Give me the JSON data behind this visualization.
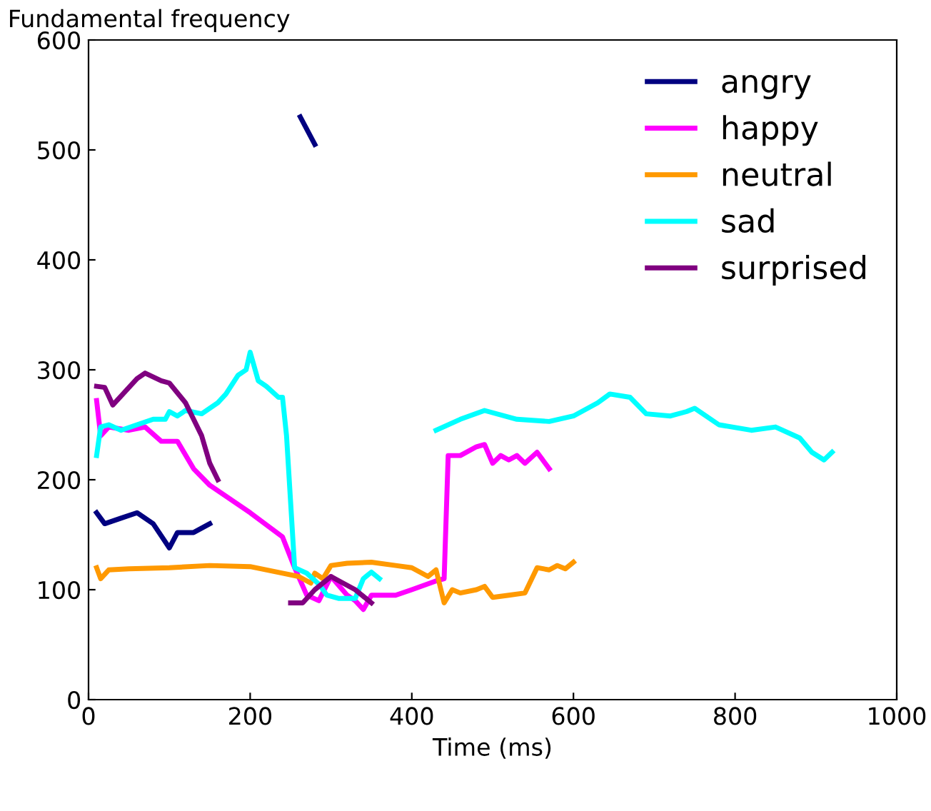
{
  "chart_data": {
    "type": "line",
    "xlabel": "Time (ms)",
    "ylabel": "Fundamental frequency",
    "xlim": [
      0,
      1000
    ],
    "xticks": [
      0,
      200,
      400,
      600,
      800,
      1000
    ],
    "ylim": [
      0,
      600
    ],
    "yticks": [
      0,
      100,
      200,
      300,
      400,
      500,
      600
    ],
    "grid": false,
    "legend": "top right",
    "marker": "none",
    "line_style": "solid",
    "series": [
      {
        "name": "angry",
        "color": "#000080",
        "x": [
          10,
          20,
          40,
          60,
          80,
          100,
          110,
          130,
          150,
          200,
          262,
          280
        ],
        "values": [
          170,
          160,
          165,
          170,
          160,
          138,
          152,
          152,
          160,
          null,
          530,
          505
        ]
      },
      {
        "name": "happy",
        "color": "#ff00ff",
        "x": [
          10,
          15,
          25,
          50,
          70,
          90,
          110,
          130,
          150,
          200,
          240,
          255,
          270,
          285,
          300,
          320,
          330,
          340,
          350,
          380,
          400,
          430,
          440,
          445,
          460,
          480,
          490,
          500,
          510,
          520,
          530,
          540,
          555,
          570
        ],
        "values": [
          272,
          240,
          248,
          245,
          248,
          235,
          235,
          210,
          195,
          170,
          148,
          120,
          95,
          90,
          112,
          95,
          90,
          82,
          95,
          95,
          100,
          108,
          110,
          222,
          222,
          230,
          232,
          215,
          222,
          218,
          222,
          215,
          225,
          210
        ]
      },
      {
        "name": "neutral",
        "color": "#ff9900",
        "x": [
          10,
          15,
          25,
          50,
          100,
          150,
          200,
          240,
          260,
          275,
          280,
          290,
          300,
          320,
          350,
          380,
          400,
          420,
          430,
          440,
          450,
          460,
          480,
          490,
          500,
          520,
          540,
          555,
          570,
          580,
          590,
          600
        ],
        "values": [
          120,
          110,
          118,
          119,
          120,
          122,
          121,
          115,
          112,
          106,
          115,
          110,
          122,
          124,
          125,
          122,
          120,
          112,
          118,
          88,
          100,
          97,
          100,
          103,
          93,
          95,
          97,
          120,
          118,
          122,
          119,
          125
        ]
      },
      {
        "name": "sad",
        "color": "#00ffff",
        "x": [
          10,
          15,
          25,
          40,
          60,
          80,
          95,
          100,
          110,
          120,
          140,
          160,
          170,
          185,
          195,
          200,
          210,
          220,
          235,
          240,
          245,
          250,
          255,
          270,
          285,
          295,
          310,
          330,
          340,
          350,
          360,
          400,
          430,
          460,
          490,
          530,
          570,
          600,
          630,
          645,
          670,
          690,
          720,
          740,
          750,
          780,
          820,
          850,
          880,
          895,
          910,
          920
        ],
        "values": [
          222,
          248,
          250,
          245,
          250,
          255,
          255,
          262,
          258,
          263,
          260,
          270,
          278,
          295,
          300,
          316,
          290,
          285,
          275,
          275,
          240,
          180,
          120,
          115,
          105,
          95,
          92,
          92,
          110,
          116,
          110,
          null,
          245,
          255,
          263,
          255,
          253,
          258,
          270,
          278,
          275,
          260,
          258,
          262,
          265,
          250,
          245,
          248,
          238,
          225,
          218,
          225
        ]
      },
      {
        "name": "surprised",
        "color": "#800080",
        "x": [
          10,
          20,
          30,
          45,
          60,
          70,
          90,
          100,
          120,
          140,
          150,
          160,
          200,
          250,
          265,
          280,
          300,
          310,
          330,
          350
        ],
        "values": [
          285,
          284,
          268,
          280,
          292,
          297,
          290,
          288,
          270,
          240,
          215,
          200,
          null,
          88,
          88,
          100,
          112,
          108,
          100,
          88
        ]
      }
    ]
  }
}
